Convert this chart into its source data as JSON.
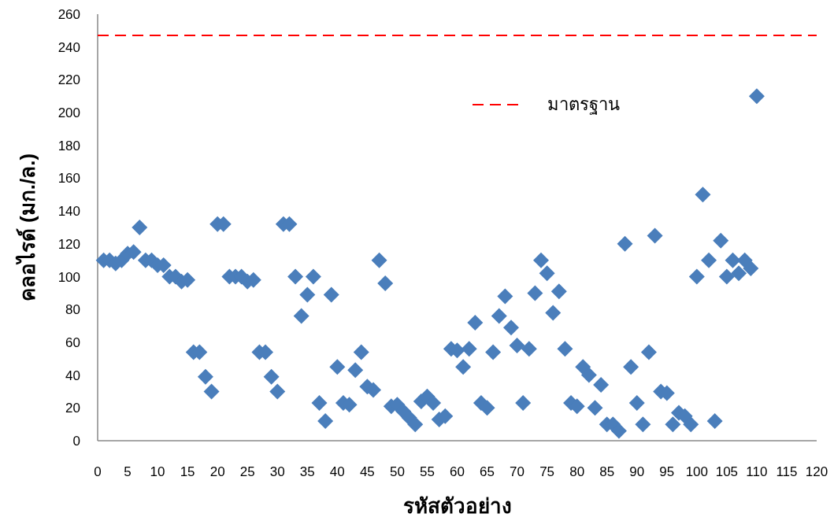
{
  "chart_data": {
    "type": "scatter",
    "xlabel": "รหัสตัวอย่าง",
    "ylabel": "คลอไรด์ (มก./ล.)",
    "xlim": [
      0,
      120
    ],
    "xticks": [
      0,
      5,
      10,
      15,
      20,
      25,
      30,
      35,
      40,
      45,
      50,
      55,
      60,
      65,
      70,
      75,
      80,
      85,
      90,
      95,
      100,
      105,
      110,
      115,
      120
    ],
    "ylim": [
      0,
      260
    ],
    "yticks": [
      0,
      20,
      40,
      60,
      80,
      100,
      120,
      140,
      160,
      180,
      200,
      220,
      240,
      260
    ],
    "grid": false,
    "marker": "diamond",
    "legend": "top",
    "ref_lines": [
      {
        "axis": "y",
        "value": 247,
        "label": "มาตรฐาน",
        "color": "#ff0000",
        "line_style": "dashed"
      }
    ],
    "series": [
      {
        "color": "#4a7ebb",
        "x": [
          1,
          2,
          3,
          4,
          5,
          6,
          7,
          8,
          9,
          10,
          11,
          12,
          13,
          14,
          15,
          16,
          17,
          18,
          19,
          20,
          21,
          22,
          23,
          24,
          25,
          26,
          27,
          28,
          29,
          30,
          31,
          32,
          33,
          34,
          35,
          36,
          37,
          38,
          39,
          40,
          41,
          42,
          43,
          44,
          45,
          46,
          47,
          48,
          49,
          50,
          51,
          52,
          53,
          54,
          55,
          56,
          57,
          58,
          59,
          60,
          61,
          62,
          63,
          64,
          65,
          66,
          67,
          68,
          69,
          70,
          71,
          72,
          73,
          74,
          75,
          76,
          77,
          78,
          79,
          80,
          81,
          82,
          83,
          84,
          85,
          86,
          87,
          88,
          89,
          90,
          91,
          92,
          93,
          94,
          95,
          96,
          97,
          98,
          99,
          100,
          101,
          102,
          103,
          104,
          105,
          106,
          107,
          108,
          109,
          110
        ],
        "values": [
          110,
          110,
          108,
          110,
          114,
          115,
          130,
          110,
          110,
          107,
          107,
          100,
          100,
          97,
          98,
          54,
          54,
          39,
          30,
          132,
          132,
          100,
          100,
          100,
          97,
          98,
          54,
          54,
          39,
          30,
          132,
          132,
          100,
          76,
          89,
          100,
          23,
          12,
          89,
          45,
          23,
          22,
          43,
          54,
          33,
          31,
          110,
          96,
          21,
          22,
          18,
          14,
          10,
          24,
          27,
          23,
          13,
          15,
          56,
          55,
          45,
          56,
          72,
          23,
          20,
          54,
          76,
          88,
          69,
          58,
          23,
          56,
          90,
          110,
          102,
          78,
          91,
          56,
          23,
          21,
          45,
          40,
          20,
          34,
          10,
          10,
          6,
          120,
          45,
          23,
          10,
          54,
          125,
          30,
          29,
          10,
          17,
          15,
          10,
          100,
          150,
          110,
          12,
          122,
          100,
          110,
          102,
          110,
          105,
          210
        ]
      }
    ]
  }
}
